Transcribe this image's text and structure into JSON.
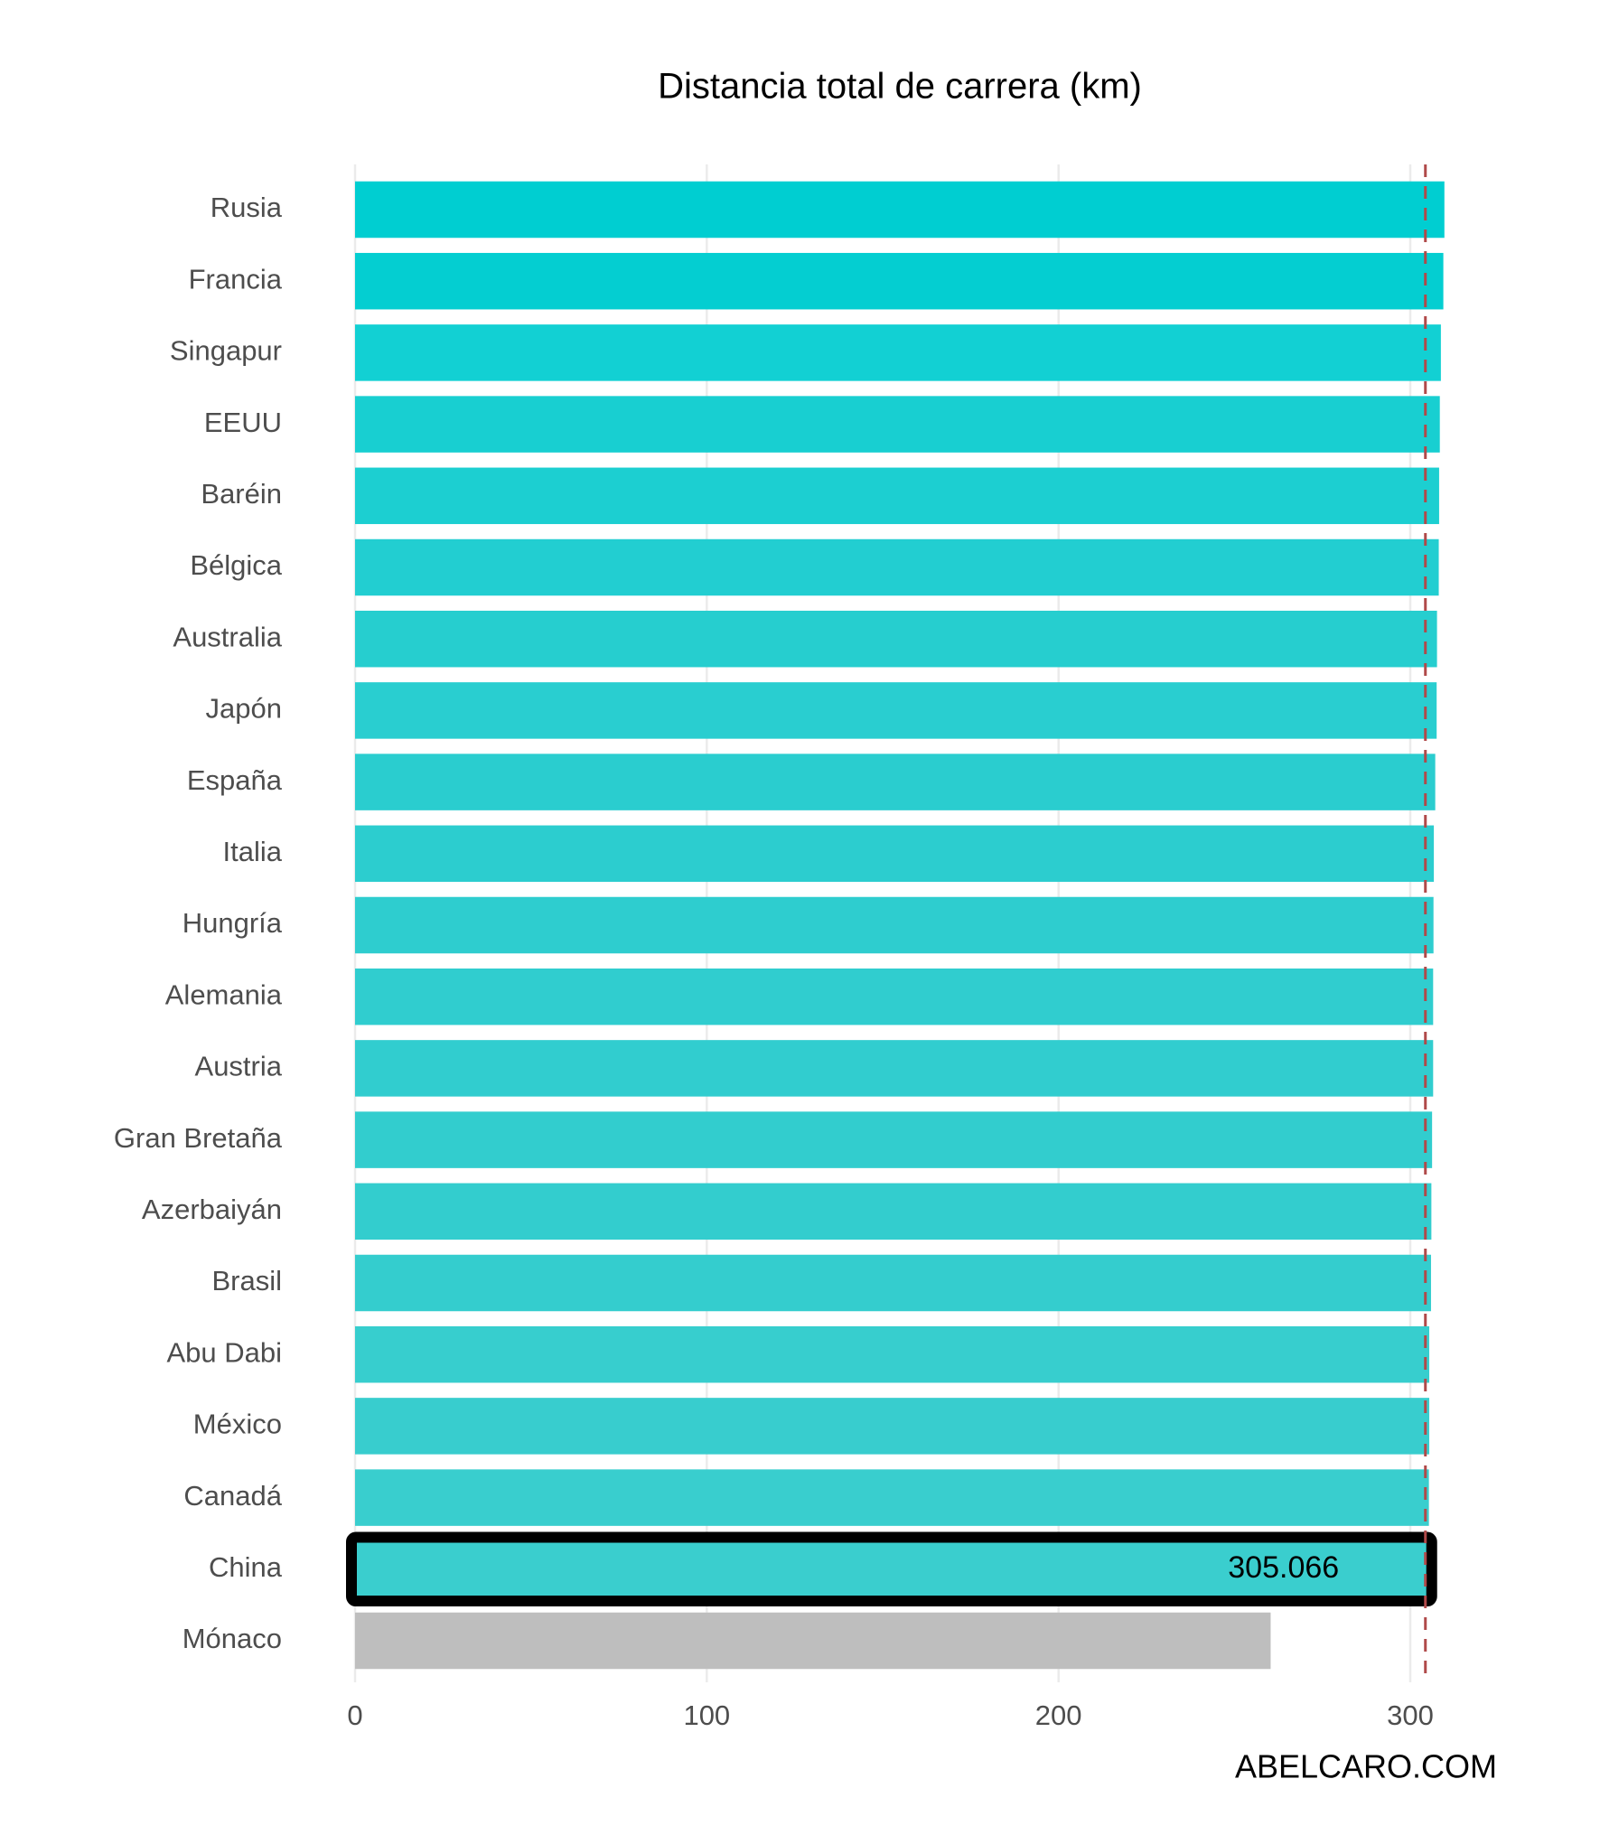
{
  "chart_data": {
    "type": "barh",
    "title": "Distancia total de carrera (km)",
    "categories": [
      "Rusia",
      "Francia",
      "Singapur",
      "EEUU",
      "Baréin",
      "Bélgica",
      "Australia",
      "Japón",
      "España",
      "Italia",
      "Hungría",
      "Alemania",
      "Austria",
      "Gran Bretaña",
      "Azerbaiyán",
      "Brasil",
      "Abu Dabi",
      "México",
      "Canadá",
      "China",
      "Mónaco"
    ],
    "values": [
      309.7,
      309.4,
      308.7,
      308.4,
      308.2,
      308.1,
      307.6,
      307.5,
      307.1,
      306.7,
      306.6,
      306.5,
      306.5,
      306.2,
      306.0,
      305.9,
      305.4,
      305.4,
      305.3,
      305.066,
      260.3
    ],
    "colors": [
      "#00ced1",
      "#04ced1",
      "#12d0d3",
      "#18cfd1",
      "#1ccfd1",
      "#22ced1",
      "#26cecf",
      "#29ced0",
      "#2acdcf",
      "#2ccdcf",
      "#2ecdcf",
      "#30cdcf",
      "#31cdcf",
      "#32cdce",
      "#33cdce",
      "#34cdce",
      "#37cece",
      "#38cdce",
      "#39cece",
      "#3acece",
      "#bebebe"
    ],
    "highlight": "China",
    "reference_line": 304.3,
    "reference_color": "#b04a4a",
    "xlim": [
      0,
      310
    ],
    "xticks": [
      0,
      100,
      200,
      300
    ],
    "grid": true,
    "watermark": "ABELCARO.COM"
  }
}
